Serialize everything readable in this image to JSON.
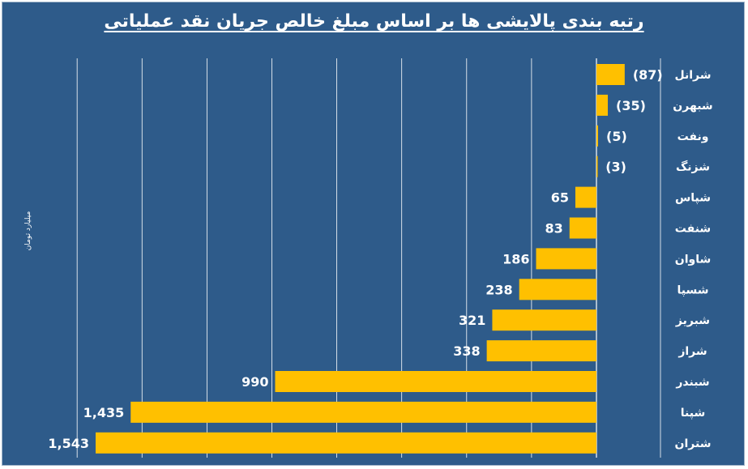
{
  "chart_data": {
    "type": "bar",
    "orientation": "horizontal",
    "title": "رتبه بندی پالایشی ها بر اساس مبلغ خالص جریان نقد عملیاتی",
    "unit_label": "میلیارد تومان",
    "categories": [
      "شرانل",
      "شبهرن",
      "ونفت",
      "شزنگ",
      "شپاس",
      "شنفت",
      "شاوان",
      "شسپا",
      "شبریز",
      "شراز",
      "شبندر",
      "شپنا",
      "شتران"
    ],
    "values": [
      -87,
      -35,
      -5,
      -3,
      65,
      83,
      186,
      238,
      321,
      338,
      990,
      1435,
      1543
    ],
    "value_labels": [
      "(87)",
      "(35)",
      "(5)",
      "(3)",
      "65",
      "83",
      "186",
      "238",
      "321",
      "338",
      "990",
      "1,435",
      "1,543"
    ],
    "xlim": [
      -200,
      1600
    ],
    "grid": true,
    "legend": "none",
    "colors": {
      "background": "#2E5B8A",
      "bar": "#FFC000",
      "text": "#FFFFFF",
      "grid": "#FFFFFF"
    }
  }
}
